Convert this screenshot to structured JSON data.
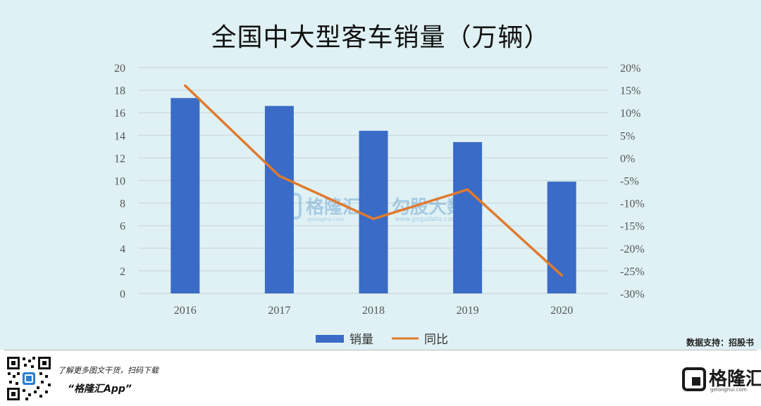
{
  "chart_data": {
    "type": "bar+line",
    "title": "全国中大型客车销量（万辆）",
    "categories": [
      "2016",
      "2017",
      "2018",
      "2019",
      "2020"
    ],
    "series": [
      {
        "name": "销量",
        "type": "bar",
        "axis": "left",
        "values": [
          17.3,
          16.6,
          14.4,
          13.4,
          9.9
        ]
      },
      {
        "name": "同比",
        "type": "line",
        "axis": "right",
        "values": [
          16.0,
          -4.0,
          -13.5,
          -7.0,
          -26.0
        ]
      }
    ],
    "y_left": {
      "ticks": [
        "0",
        "2",
        "4",
        "6",
        "8",
        "10",
        "12",
        "14",
        "16",
        "18",
        "20"
      ],
      "range": [
        0,
        20
      ]
    },
    "y_right": {
      "ticks": [
        "-30%",
        "-25%",
        "-20%",
        "-15%",
        "-10%",
        "-5%",
        "0%",
        "5%",
        "10%",
        "15%",
        "20%"
      ],
      "range": [
        -30,
        20
      ]
    },
    "grid": true,
    "legend": "bottom",
    "colors": {
      "bar": "#3a6bc6",
      "line": "#e07a2e",
      "grid": "#c9d4d8",
      "background": "#dff1f4"
    }
  },
  "source": "数据支持：招股书",
  "watermark": {
    "text1": "格隆汇",
    "text2": "勾股大数据",
    "url1": "gelonghui.com",
    "url2": "www.gogudata.com"
  },
  "footer": {
    "promo_line1": "了解更多图文干货，扫码下载",
    "promo_line2": "“格隆汇App”",
    "brand_name": "格隆汇",
    "brand_url": "gelonghui.com",
    "qr_icon": "qr-code-icon",
    "logo_icon": "g-logo-icon"
  }
}
